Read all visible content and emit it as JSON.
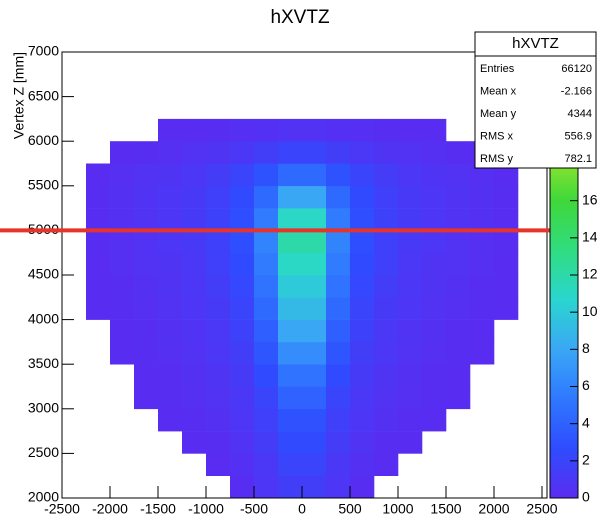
{
  "chart_data": {
    "type": "heatmap",
    "title": "hXVTZ",
    "y_label": "Vertex Z [mm]",
    "xlim": [
      -2500,
      2500
    ],
    "xticks": [
      -2500,
      -2000,
      -1500,
      -1000,
      -500,
      0,
      500,
      1000,
      1500,
      2000,
      2500
    ],
    "ylim": [
      2000,
      7000
    ],
    "yticks": [
      2000,
      2500,
      3000,
      3500,
      4000,
      4500,
      5000,
      5500,
      6000,
      6500,
      7000
    ],
    "bin_width_x": 250,
    "bin_width_y": 250,
    "zlim": [
      0,
      24
    ],
    "zticks": [
      0,
      2,
      4,
      6,
      8,
      10,
      12,
      14,
      16
    ],
    "colorscale": [
      "#5a2cf0",
      "#2f4cff",
      "#2f78ff",
      "#3aa7f5",
      "#2ad6cf",
      "#30dc80",
      "#3fd83a",
      "#9ee62c",
      "#e6f020",
      "#f8f820"
    ],
    "values": [
      [
        0,
        0,
        0,
        0,
        0,
        0,
        0,
        0.2,
        0.8,
        1.5,
        1.5,
        0.8,
        0.2,
        0,
        0,
        0,
        0,
        0,
        0,
        0
      ],
      [
        0,
        0,
        0,
        0,
        0,
        0,
        0.1,
        0.4,
        1,
        2,
        2,
        1,
        0.4,
        0.1,
        0,
        0,
        0,
        0,
        0,
        0
      ],
      [
        0,
        0,
        0,
        0,
        0,
        0.1,
        0.2,
        0.6,
        1.3,
        2.5,
        2.5,
        1.3,
        0.6,
        0.2,
        0.1,
        0,
        0,
        0,
        0,
        0
      ],
      [
        0,
        0,
        0,
        0,
        0.1,
        0.2,
        0.4,
        0.8,
        1.6,
        3,
        3,
        1.6,
        0.8,
        0.4,
        0.2,
        0.1,
        0,
        0,
        0,
        0
      ],
      [
        0,
        0,
        0,
        0.1,
        0.2,
        0.3,
        0.5,
        1,
        2,
        4,
        4,
        2,
        1,
        0.5,
        0.3,
        0.2,
        0.1,
        0,
        0,
        0
      ],
      [
        0,
        0,
        0,
        0.1,
        0.2,
        0.4,
        0.7,
        1.2,
        2.6,
        5,
        5,
        2.6,
        1.2,
        0.7,
        0.4,
        0.2,
        0.1,
        0,
        0,
        0
      ],
      [
        0,
        0,
        0.1,
        0.2,
        0.3,
        0.5,
        0.9,
        1.5,
        3.2,
        6.5,
        6.5,
        3.2,
        1.5,
        0.9,
        0.5,
        0.3,
        0.2,
        0.1,
        0,
        0
      ],
      [
        0,
        0,
        0.1,
        0.2,
        0.4,
        0.6,
        1,
        1.8,
        3.8,
        8,
        8,
        3.8,
        1.8,
        1,
        0.6,
        0.4,
        0.2,
        0.1,
        0,
        0
      ],
      [
        0,
        0.1,
        0.2,
        0.3,
        0.5,
        0.8,
        1.2,
        2,
        4.5,
        9,
        9,
        4.5,
        2,
        1.2,
        0.8,
        0.5,
        0.3,
        0.2,
        0.1,
        0
      ],
      [
        0,
        0.1,
        0.2,
        0.4,
        0.6,
        0.9,
        1.4,
        2.3,
        5,
        10,
        10,
        5,
        2.3,
        1.4,
        0.9,
        0.6,
        0.4,
        0.2,
        0.1,
        0
      ],
      [
        0,
        0.1,
        0.3,
        0.5,
        0.7,
        1,
        1.6,
        2.6,
        5.5,
        11,
        11,
        5.5,
        2.6,
        1.6,
        1,
        0.7,
        0.5,
        0.3,
        0.1,
        0
      ],
      [
        0,
        0.2,
        0.3,
        0.5,
        0.8,
        1.1,
        1.7,
        2.8,
        6,
        12,
        12,
        6,
        2.8,
        1.7,
        1.1,
        0.8,
        0.5,
        0.3,
        0.2,
        0
      ],
      [
        0,
        0.2,
        0.4,
        0.6,
        0.8,
        1.2,
        1.8,
        2.8,
        5.5,
        11,
        11,
        5.5,
        2.8,
        1.8,
        1.2,
        0.8,
        0.6,
        0.4,
        0.2,
        0
      ],
      [
        0,
        0.2,
        0.4,
        0.6,
        0.8,
        1.1,
        1.6,
        2.5,
        4.5,
        8,
        8,
        4.5,
        2.5,
        1.6,
        1.1,
        0.8,
        0.6,
        0.4,
        0.2,
        0
      ],
      [
        0,
        0.1,
        0.3,
        0.5,
        0.7,
        0.9,
        1.3,
        2,
        3,
        4.5,
        4.5,
        3,
        2,
        1.3,
        0.9,
        0.7,
        0.5,
        0.3,
        0.1,
        0
      ],
      [
        0,
        0,
        0.1,
        0.2,
        0.3,
        0.5,
        0.7,
        1,
        1.5,
        2,
        2,
        1.5,
        1,
        0.7,
        0.5,
        0.3,
        0.2,
        0.1,
        0,
        0
      ],
      [
        0,
        0,
        0,
        0,
        0.1,
        0.1,
        0.2,
        0.3,
        0.4,
        0.5,
        0.5,
        0.4,
        0.3,
        0.2,
        0.1,
        0.1,
        0,
        0,
        0,
        0
      ],
      [
        0,
        0,
        0,
        0,
        0,
        0,
        0,
        0,
        0,
        0,
        0,
        0,
        0,
        0,
        0,
        0,
        0,
        0,
        0,
        0
      ],
      [
        0,
        0,
        0,
        0,
        0,
        0,
        0,
        0,
        0,
        0,
        0,
        0,
        0,
        0,
        0,
        0,
        0,
        0,
        0,
        0
      ],
      [
        0,
        0,
        0,
        0,
        0,
        0,
        0,
        0,
        0,
        0,
        0,
        0,
        0,
        0,
        0,
        0,
        0,
        0,
        0,
        0
      ]
    ],
    "hline": {
      "value": 5000,
      "color": "#e8332a"
    },
    "stats": {
      "title": "hXVTZ",
      "rows": [
        [
          "Entries",
          66120
        ],
        [
          "Mean x",
          -2.166
        ],
        [
          "Mean y",
          4344
        ],
        [
          "RMS x",
          556.9
        ],
        [
          "RMS y",
          782.1
        ]
      ]
    }
  }
}
